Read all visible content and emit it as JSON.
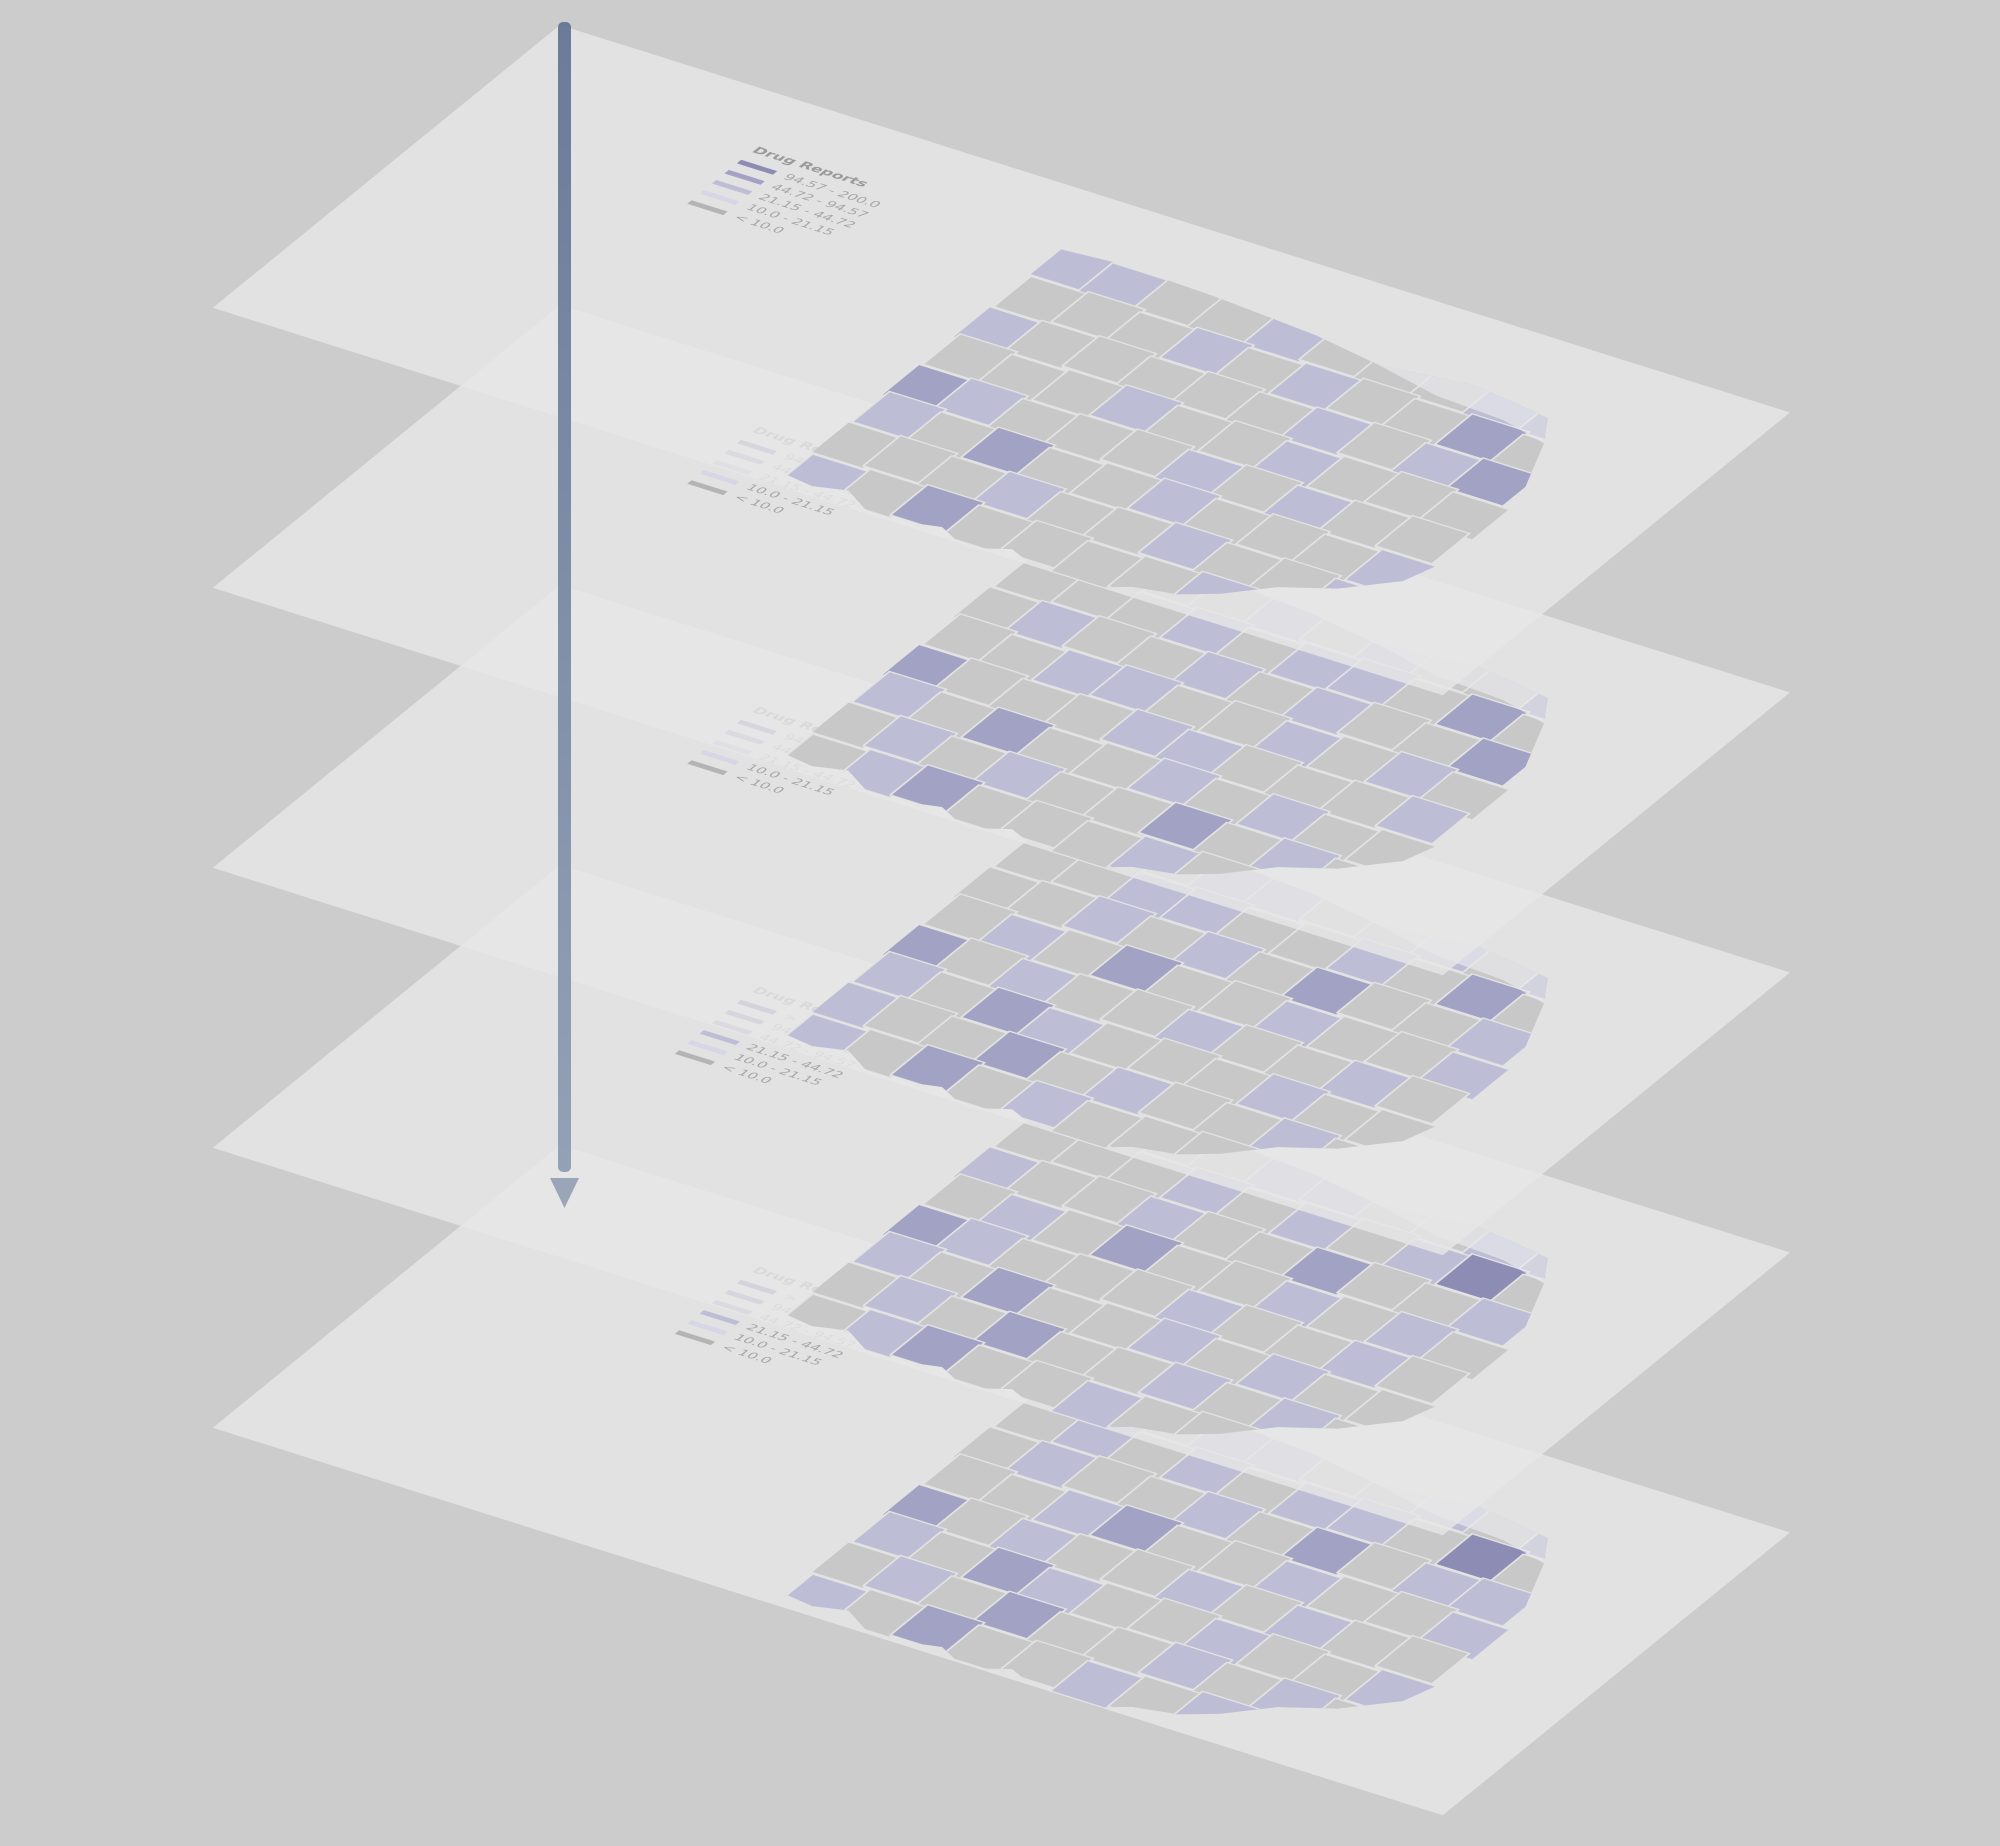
{
  "scene": {
    "background_color": "#cccccc",
    "plane_color": "#e6e6e6",
    "arrow_color": "#5e7090",
    "county_base_color": "#c8c8c8",
    "county_border_color": "#e2e2e2"
  },
  "time_flow_arrow": {
    "direction": "down",
    "icon": "arrow-down-icon"
  },
  "layers": [
    {
      "legend": {
        "title": "Drug Reports",
        "items": [
          {
            "label": "94.57 - 200.0",
            "color": "#8c8cb4"
          },
          {
            "label": "44.72 - 94.57",
            "color": "#a2a2c4"
          },
          {
            "label": "21.15 - 44.72",
            "color": "#bdbdd6"
          },
          {
            "label": "10.0 - 21.15",
            "color": "#d6d6e6"
          },
          {
            "label": "< 10.0",
            "color": "#b4b4b4"
          }
        ]
      },
      "county_levels": [
        1,
        1,
        0,
        0,
        1,
        0,
        0,
        0,
        1,
        2,
        0,
        0,
        0,
        1,
        0,
        1,
        0,
        0,
        2,
        0,
        1,
        0,
        0,
        0,
        0,
        0,
        1,
        0,
        1,
        2,
        0,
        0,
        0,
        1,
        0,
        0,
        1,
        0,
        0,
        0,
        2,
        1,
        0,
        0,
        0,
        1,
        0,
        1,
        0,
        0,
        1,
        0,
        2,
        0,
        0,
        1,
        0,
        0,
        0,
        1,
        0,
        0,
        0,
        1,
        0,
        0,
        1,
        0,
        0,
        1,
        1,
        0,
        2,
        0,
        0,
        0,
        0,
        1,
        0,
        0
      ]
    },
    {
      "legend": {
        "title": "Drug Reports",
        "items": [
          {
            "label": "94.57 - 200.0",
            "color": "#8c8cb4"
          },
          {
            "label": "44.72 - 94.57",
            "color": "#a2a2c4"
          },
          {
            "label": "21.15 - 44.72",
            "color": "#bdbdd6"
          },
          {
            "label": "10.0 - 21.15",
            "color": "#d6d6e6"
          },
          {
            "label": "< 10.0",
            "color": "#b4b4b4"
          }
        ]
      },
      "county_levels": [
        2,
        1,
        0,
        0,
        1,
        0,
        1,
        0,
        0,
        2,
        0,
        0,
        0,
        1,
        0,
        1,
        1,
        0,
        2,
        0,
        0,
        1,
        0,
        0,
        1,
        0,
        1,
        0,
        0,
        2,
        0,
        0,
        1,
        1,
        0,
        0,
        1,
        0,
        1,
        0,
        2,
        0,
        0,
        0,
        1,
        1,
        0,
        0,
        0,
        1,
        1,
        0,
        2,
        0,
        0,
        1,
        0,
        1,
        0,
        0,
        0,
        1,
        0,
        1,
        0,
        0,
        2,
        0,
        1,
        0,
        0,
        1,
        2,
        0,
        0,
        0,
        1,
        0,
        0,
        1
      ]
    },
    {
      "legend": {
        "title": "Drug Reports",
        "items": [
          {
            "label": "94.57 - 200.0",
            "color": "#8c8cb4"
          },
          {
            "label": "44.72 - 94.57",
            "color": "#a2a2c4"
          },
          {
            "label": "21.15 - 44.72",
            "color": "#bdbdd6"
          },
          {
            "label": "10.0 - 21.15",
            "color": "#d6d6e6"
          },
          {
            "label": "< 10.0",
            "color": "#b4b4b4"
          }
        ]
      },
      "county_levels": [
        1,
        2,
        0,
        1,
        1,
        0,
        0,
        1,
        0,
        2,
        0,
        0,
        1,
        1,
        0,
        0,
        1,
        0,
        2,
        0,
        0,
        0,
        1,
        0,
        1,
        0,
        2,
        0,
        0,
        1,
        0,
        1,
        0,
        2,
        0,
        0,
        1,
        0,
        0,
        1,
        2,
        0,
        1,
        0,
        0,
        1,
        0,
        0,
        1,
        0,
        1,
        0,
        2,
        1,
        0,
        0,
        0,
        1,
        0,
        0,
        1,
        0,
        0,
        2,
        0,
        1,
        0,
        0,
        1,
        0,
        1,
        0,
        2,
        0,
        1,
        0,
        0,
        0,
        1,
        0
      ]
    },
    {
      "legend": {
        "title": "Drug Reports",
        "items": [
          {
            "label": "> 200.0",
            "color": "#7c7ca8"
          },
          {
            "label": "94.57 - 200.0",
            "color": "#8c8cb4"
          },
          {
            "label": "44.72 - 94.57",
            "color": "#a2a2c4"
          },
          {
            "label": "21.15 - 44.72",
            "color": "#bdbdd6"
          },
          {
            "label": "10.0 - 21.15",
            "color": "#d6d6e6"
          },
          {
            "label": "< 10.0",
            "color": "#b4b4b4"
          }
        ]
      },
      "county_levels": [
        2,
        1,
        0,
        0,
        1,
        1,
        0,
        0,
        1,
        2,
        0,
        0,
        0,
        1,
        0,
        1,
        0,
        1,
        3,
        0,
        1,
        0,
        0,
        1,
        0,
        0,
        2,
        0,
        0,
        1,
        0,
        1,
        0,
        2,
        0,
        0,
        1,
        0,
        1,
        0,
        2,
        1,
        0,
        0,
        0,
        1,
        0,
        0,
        1,
        0,
        1,
        0,
        2,
        0,
        0,
        1,
        0,
        1,
        0,
        0,
        0,
        1,
        0,
        2,
        0,
        0,
        1,
        0,
        1,
        0,
        0,
        1,
        2,
        0,
        0,
        1,
        0,
        0,
        1,
        0
      ]
    },
    {
      "legend": {
        "title": "Drug Reports",
        "items": [
          {
            "label": "> 200.0",
            "color": "#7c7ca8"
          },
          {
            "label": "94.57 - 200.0",
            "color": "#8c8cb4"
          },
          {
            "label": "44.72 - 94.57",
            "color": "#a2a2c4"
          },
          {
            "label": "21.15 - 44.72",
            "color": "#bdbdd6"
          },
          {
            "label": "10.0 - 21.15",
            "color": "#d6d6e6"
          },
          {
            "label": "< 10.0",
            "color": "#b4b4b4"
          }
        ]
      },
      "county_levels": [
        2,
        1,
        0,
        1,
        1,
        0,
        0,
        1,
        0,
        2,
        0,
        1,
        0,
        1,
        0,
        1,
        1,
        0,
        3,
        0,
        0,
        1,
        0,
        0,
        1,
        0,
        2,
        0,
        1,
        1,
        0,
        0,
        1,
        2,
        0,
        0,
        1,
        0,
        0,
        1,
        2,
        0,
        1,
        0,
        0,
        1,
        0,
        1,
        0,
        0,
        1,
        0,
        2,
        1,
        0,
        0,
        1,
        0,
        0,
        1,
        0,
        1,
        0,
        2,
        0,
        0,
        1,
        0,
        1,
        0,
        1,
        0,
        2,
        0,
        0,
        1,
        0,
        1,
        0,
        0
      ]
    }
  ]
}
